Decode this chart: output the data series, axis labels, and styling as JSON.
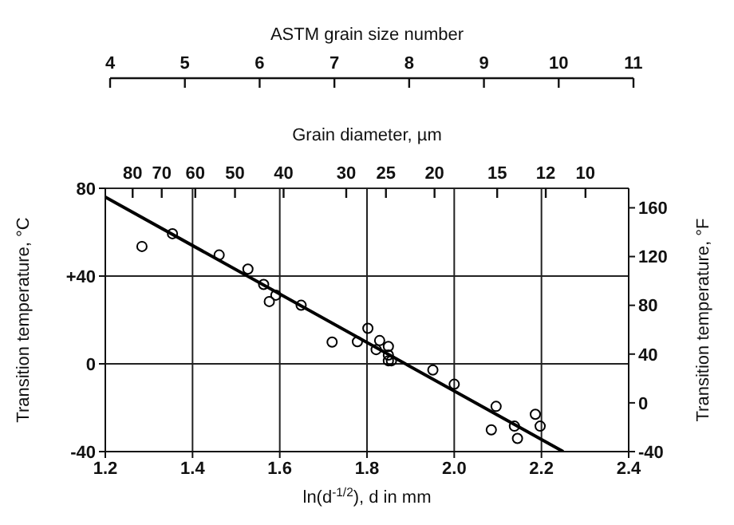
{
  "chart_data": {
    "type": "scatter",
    "xlabel": "ln(d$^{-1/2}$), d in mm",
    "ylabel": "Transition temperature, °C",
    "y2label": "Transition temperature, °F",
    "x2label": "Grain diameter, µm",
    "annotations": [
      "ASTM grain size number",
      "4",
      "5",
      "6",
      "7",
      "8",
      "9",
      "10",
      "11"
    ],
    "xlim": [
      1.2,
      2.4
    ],
    "xticks": [
      1.2,
      1.4,
      1.6,
      1.8,
      {
        "value": 2,
        "label": "2.0"
      },
      2.2,
      2.4
    ],
    "ylim": [
      -40,
      80
    ],
    "yticks": [
      -40,
      0,
      {
        "value": 40,
        "label": "+40"
      },
      80
    ],
    "y2lim": [
      -40,
      176
    ],
    "y2ticks": [
      -40,
      0,
      40,
      80,
      120,
      160
    ],
    "x2lim": [
      90.7,
      8.2
    ],
    "x2ticks": [
      80,
      70,
      60,
      50,
      40,
      30,
      25,
      20,
      15,
      12,
      10
    ],
    "log": "x2",
    "grid": true,
    "marker": "circle",
    "series": [
      {
        "color": "#000000",
        "x": [
          1.284,
          1.354,
          1.461,
          1.527,
          1.563,
          1.576,
          1.591,
          1.649,
          1.72,
          1.778,
          1.802,
          1.821,
          1.829,
          1.849,
          1.849,
          1.849,
          1.856,
          1.951,
          2.0,
          2.096,
          2.085,
          2.138,
          2.145,
          2.186,
          2.197
        ],
        "values": [
          53.5,
          59.3,
          49.6,
          43.2,
          36.2,
          28.4,
          31.3,
          26.7,
          9.9,
          10.1,
          16.2,
          6.5,
          10.6,
          7.9,
          4.0,
          1.4,
          1.4,
          -2.8,
          -9.3,
          -19.4,
          -30.1,
          -28.4,
          -34,
          -23,
          -28.4
        ]
      },
      {
        "type": "line",
        "color": "#000000",
        "marker": "none",
        "x": [
          1.2,
          2.25
        ],
        "values": [
          76,
          -40
        ]
      }
    ]
  }
}
